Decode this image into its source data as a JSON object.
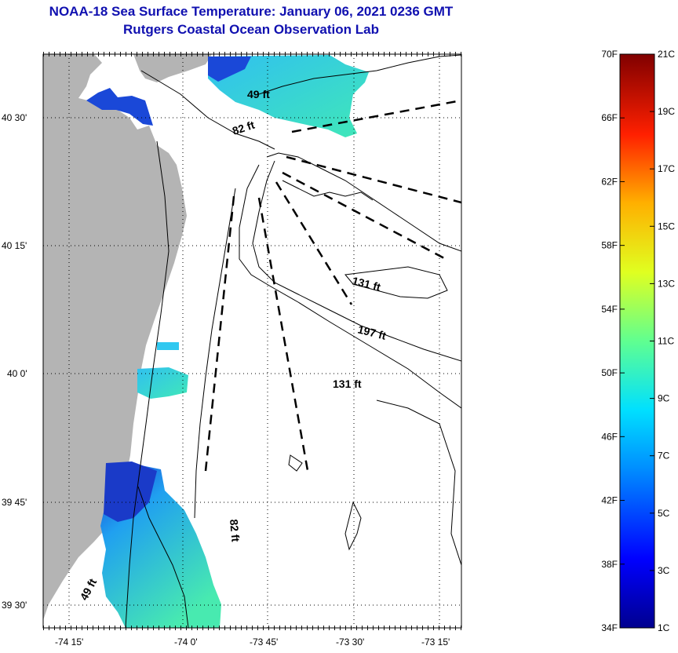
{
  "title": "NOAA-18 Sea Surface Temperature:  January 06, 2021 0236 GMT",
  "subtitle": "Rutgers Coastal Ocean Observation Lab",
  "map": {
    "lat_ticks": [
      "40 30'",
      "40 15'",
      "40 0'",
      "39 45'",
      "39 30'"
    ],
    "lon_ticks": [
      "-74 15'",
      "-74 0'",
      "-73 45'",
      "-73 30'",
      "-73 15'"
    ],
    "depth_labels": [
      "49 ft",
      "82 ft",
      "131 ft",
      "197 ft",
      "131 ft",
      "82 ft",
      "49 ft"
    ]
  },
  "colorbar": {
    "fahrenheit": [
      "70F",
      "66F",
      "62F",
      "58F",
      "54F",
      "50F",
      "46F",
      "42F",
      "38F",
      "34F"
    ],
    "celsius": [
      "21C",
      "19C",
      "17C",
      "15C",
      "13C",
      "11C",
      "9C",
      "7C",
      "5C",
      "3C",
      "1C"
    ]
  },
  "colors": {
    "title": "#1010b0",
    "land": "#b4b4b4",
    "water_warm": "#40e0b0",
    "water_mid": "#30c8f0",
    "water_cold": "#1040d0"
  }
}
